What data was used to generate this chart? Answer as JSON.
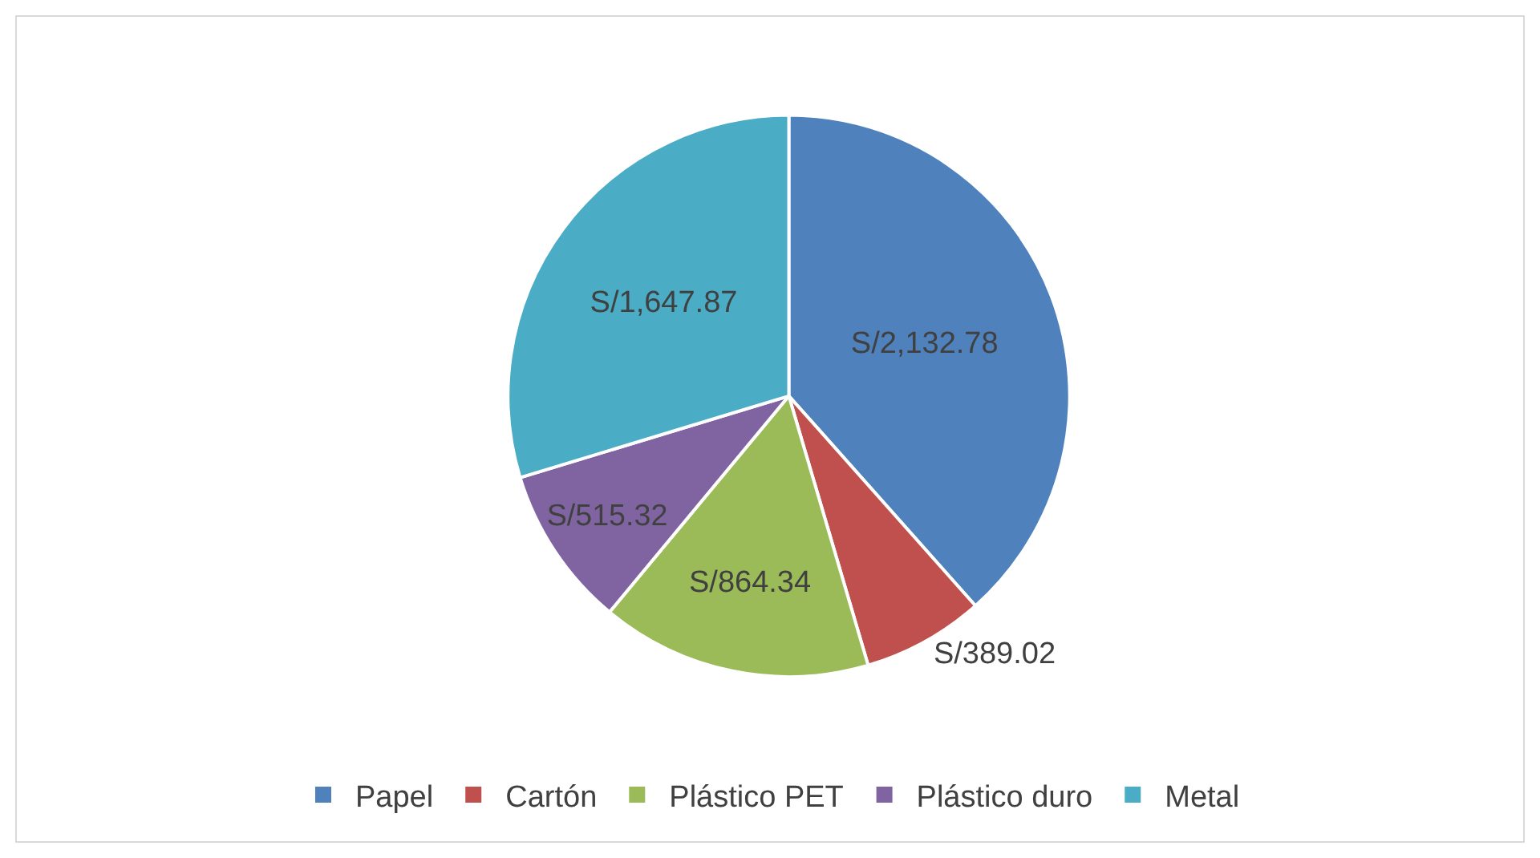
{
  "chart_data": {
    "type": "pie",
    "categories": [
      "Papel",
      "Cartón",
      "Plástico PET",
      "Plástico duro",
      "Metal"
    ],
    "values": [
      2132.78,
      389.02,
      864.34,
      515.32,
      1647.87
    ],
    "value_labels": [
      "S/2,132.78",
      "S/389.02",
      "S/864.34",
      "S/515.32",
      "S/1,647.87"
    ],
    "colors": [
      "#4f81bd",
      "#c0504d",
      "#9bbb59",
      "#8064a2",
      "#4bacc6"
    ],
    "legend": "bottom"
  }
}
